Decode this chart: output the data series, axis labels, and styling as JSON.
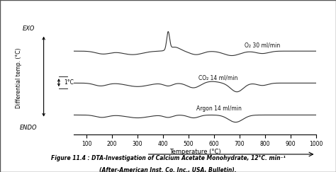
{
  "title_line1": "Figure 11.4 : DTA-Investigation of Calcium Acetate Monohydrate, 12°C. min⁻¹",
  "title_line2": "(After-American Inst. Co. Inc., USA, Bulletin).",
  "xlabel": "Temperature (°C)",
  "ylabel": "Differential temp. (°C)",
  "xlim": [
    50,
    1000
  ],
  "xticks": [
    100,
    200,
    300,
    400,
    500,
    600,
    700,
    800,
    900,
    1000
  ],
  "exo_label": "EXO",
  "endo_label": "ENDO",
  "scale_label": "1°C",
  "curve_labels": [
    "O₂ 30 ml/min",
    "CO₂ 14 ml/min",
    "Argon 14 ml/min"
  ],
  "bg_color": "#ffffff",
  "line_color": "#333333",
  "border_color": "#555555"
}
